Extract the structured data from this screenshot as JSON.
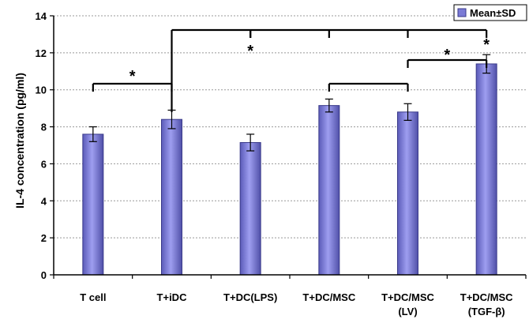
{
  "chart_data": {
    "type": "bar",
    "categories": [
      [
        "T cell"
      ],
      [
        "T+iDC"
      ],
      [
        "T+DC(LPS)"
      ],
      [
        "T+DC/MSC"
      ],
      [
        "T+DC/MSC",
        "(LV)"
      ],
      [
        "T+DC/MSC",
        "(TGF-β)"
      ]
    ],
    "values": [
      7.6,
      8.4,
      7.15,
      9.15,
      8.8,
      11.4
    ],
    "errors": [
      0.4,
      0.5,
      0.45,
      0.35,
      0.45,
      0.5
    ],
    "ylabel": "IL-4 concentration (pg/ml)",
    "ylim": [
      0,
      14
    ],
    "yticks": [
      0,
      2,
      4,
      6,
      8,
      10,
      12,
      14
    ],
    "grid": true,
    "legend": {
      "label": "Mean±SD",
      "position": "top-right"
    },
    "significance": [
      {
        "from": 0,
        "to": 1,
        "mark": "*"
      },
      {
        "from": 3,
        "to": 4,
        "mark": ""
      },
      {
        "from": 4,
        "to": 5,
        "mark": "*"
      },
      {
        "from": 1,
        "to": [
          2,
          3,
          4,
          5
        ],
        "mark": "*"
      }
    ],
    "colors": {
      "bar": "#7b7bd6",
      "bar_edge": "#3a3a8a",
      "grid": "#999999"
    }
  }
}
